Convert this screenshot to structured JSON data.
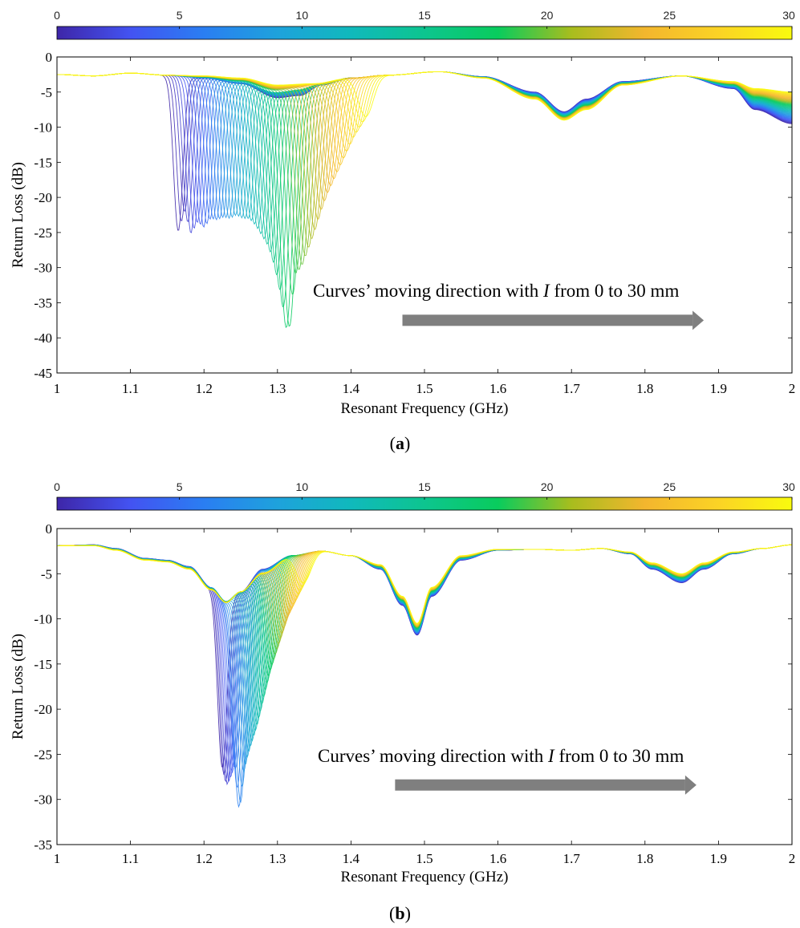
{
  "chart_data": [
    {
      "type": "line",
      "panel": "a",
      "caption_letter": "a",
      "xlabel": "Resonant Frequency (GHz)",
      "ylabel": "Return Loss (dB)",
      "xlim": [
        1,
        2
      ],
      "ylim": [
        -45,
        0
      ],
      "xticks": [
        "1",
        "1.1",
        "1.2",
        "1.3",
        "1.4",
        "1.5",
        "1.6",
        "1.7",
        "1.8",
        "1.9",
        "2"
      ],
      "yticks": [
        "0",
        "-5",
        "-10",
        "-15",
        "-20",
        "-25",
        "-30",
        "-35",
        "-40",
        "-45"
      ],
      "colorbar": {
        "min": 0,
        "max": 30,
        "ticks": [
          "0",
          "5",
          "10",
          "15",
          "20",
          "25",
          "30"
        ]
      },
      "annotation": {
        "prefix": "Curves’ moving direction with ",
        "italic": "I",
        "suffix": " from 0 to 30 mm"
      },
      "arrow": {
        "x_start": 1.47,
        "x_end": 1.88,
        "y": -37.5
      },
      "curve_family": {
        "count": 60,
        "parameter": "I (mm)",
        "dip_frequency_range": [
          1.165,
          1.42
        ],
        "dip_depths_db": [
          -24.8,
          -22.0,
          -25.2,
          -23.5,
          -24.3,
          -23.0,
          -23.2,
          -22.8,
          -23.0,
          -22.5,
          -23.0,
          -23.0,
          -24.0,
          -25.5,
          -27.0,
          -30.0,
          -34.3,
          -40.3,
          -31.0,
          -30.0,
          -27.5,
          -25.0,
          -22.0,
          -19.5,
          -17.5,
          -15.5,
          -13.5,
          -11.5,
          -10.0,
          -8.5
        ],
        "base_curve": [
          [
            1.0,
            -2.5
          ],
          [
            1.05,
            -2.7
          ],
          [
            1.1,
            -2.3
          ],
          [
            1.15,
            -2.6
          ],
          [
            1.2,
            -3.0
          ],
          [
            1.25,
            -3.8
          ],
          [
            1.3,
            -5.8
          ],
          [
            1.33,
            -5.5
          ],
          [
            1.36,
            -4.0
          ],
          [
            1.4,
            -3.0
          ],
          [
            1.45,
            -2.6
          ],
          [
            1.52,
            -2.1
          ],
          [
            1.58,
            -2.8
          ],
          [
            1.65,
            -5.0
          ],
          [
            1.69,
            -7.8
          ],
          [
            1.72,
            -6.0
          ],
          [
            1.77,
            -3.5
          ],
          [
            1.85,
            -2.7
          ],
          [
            1.92,
            -4.5
          ],
          [
            1.95,
            -7.5
          ],
          [
            2.0,
            -9.5
          ]
        ],
        "end_curve": [
          [
            1.0,
            -2.5
          ],
          [
            1.05,
            -2.7
          ],
          [
            1.1,
            -2.3
          ],
          [
            1.15,
            -2.6
          ],
          [
            1.2,
            -2.7
          ],
          [
            1.25,
            -3.0
          ],
          [
            1.3,
            -4.0
          ],
          [
            1.35,
            -3.8
          ],
          [
            1.4,
            -3.0
          ],
          [
            1.45,
            -2.6
          ],
          [
            1.52,
            -2.1
          ],
          [
            1.58,
            -3.0
          ],
          [
            1.65,
            -6.0
          ],
          [
            1.69,
            -9.0
          ],
          [
            1.72,
            -7.5
          ],
          [
            1.77,
            -4.0
          ],
          [
            1.85,
            -2.7
          ],
          [
            1.92,
            -3.5
          ],
          [
            1.95,
            -4.5
          ],
          [
            2.0,
            -5.0
          ]
        ]
      }
    },
    {
      "type": "line",
      "panel": "b",
      "caption_letter": "b",
      "xlabel": "Resonant Frequency (GHz)",
      "ylabel": "Return Loss (dB)",
      "xlim": [
        1,
        2
      ],
      "ylim": [
        -35,
        0
      ],
      "xticks": [
        "1",
        "1.1",
        "1.2",
        "1.3",
        "1.4",
        "1.5",
        "1.6",
        "1.7",
        "1.8",
        "1.9",
        "2"
      ],
      "yticks": [
        "0",
        "-5",
        "-10",
        "-15",
        "-20",
        "-25",
        "-30",
        "-35"
      ],
      "colorbar": {
        "min": 0,
        "max": 30,
        "ticks": [
          "0",
          "5",
          "10",
          "15",
          "20",
          "25",
          "30"
        ]
      },
      "annotation": {
        "prefix": "Curves’ moving direction with ",
        "italic": "I",
        "suffix": " from 0 to 30 mm"
      },
      "arrow": {
        "x_start": 1.46,
        "x_end": 1.87,
        "y": -28.4
      },
      "curve_family": {
        "count": 50,
        "parameter": "I (mm)",
        "dip_frequency_range": [
          1.225,
          1.335
        ],
        "dip_depths_db": [
          -26.5,
          -28.5,
          -27.5,
          -26.0,
          -31.5,
          -27.0,
          -25.0,
          -23.5,
          -22.0,
          -20.0,
          -18.0,
          -16.0,
          -14.5,
          -13.0,
          -11.5,
          -10.0,
          -9.0,
          -8.0,
          -7.0,
          -6.0
        ],
        "base_curve": [
          [
            1.0,
            -1.9
          ],
          [
            1.05,
            -1.8
          ],
          [
            1.08,
            -2.2
          ],
          [
            1.12,
            -3.3
          ],
          [
            1.15,
            -3.5
          ],
          [
            1.18,
            -4.2
          ],
          [
            1.21,
            -6.5
          ],
          [
            1.23,
            -8.0
          ],
          [
            1.25,
            -7.0
          ],
          [
            1.28,
            -4.5
          ],
          [
            1.32,
            -3.0
          ],
          [
            1.36,
            -2.5
          ],
          [
            1.4,
            -3.0
          ],
          [
            1.44,
            -4.5
          ],
          [
            1.47,
            -8.5
          ],
          [
            1.49,
            -11.8
          ],
          [
            1.51,
            -7.5
          ],
          [
            1.55,
            -3.5
          ],
          [
            1.6,
            -2.4
          ],
          [
            1.65,
            -2.3
          ],
          [
            1.7,
            -2.4
          ],
          [
            1.74,
            -2.2
          ],
          [
            1.78,
            -2.8
          ],
          [
            1.81,
            -4.5
          ],
          [
            1.85,
            -6.0
          ],
          [
            1.88,
            -4.5
          ],
          [
            1.92,
            -2.8
          ],
          [
            1.96,
            -2.2
          ],
          [
            2.0,
            -1.8
          ]
        ],
        "end_curve": [
          [
            1.0,
            -1.9
          ],
          [
            1.05,
            -1.9
          ],
          [
            1.08,
            -2.4
          ],
          [
            1.12,
            -3.5
          ],
          [
            1.15,
            -3.7
          ],
          [
            1.18,
            -4.5
          ],
          [
            1.21,
            -6.8
          ],
          [
            1.23,
            -8.2
          ],
          [
            1.25,
            -7.0
          ],
          [
            1.28,
            -5.0
          ],
          [
            1.32,
            -3.0
          ],
          [
            1.36,
            -2.5
          ],
          [
            1.4,
            -3.0
          ],
          [
            1.44,
            -4.0
          ],
          [
            1.47,
            -7.5
          ],
          [
            1.49,
            -10.5
          ],
          [
            1.51,
            -6.5
          ],
          [
            1.55,
            -3.0
          ],
          [
            1.6,
            -2.3
          ],
          [
            1.65,
            -2.3
          ],
          [
            1.7,
            -2.4
          ],
          [
            1.74,
            -2.2
          ],
          [
            1.78,
            -2.6
          ],
          [
            1.81,
            -3.8
          ],
          [
            1.85,
            -5.0
          ],
          [
            1.88,
            -3.8
          ],
          [
            1.92,
            -2.6
          ],
          [
            1.96,
            -2.2
          ],
          [
            2.0,
            -1.8
          ]
        ]
      }
    }
  ],
  "colormap": [
    "#3e26a8",
    "#4353f2",
    "#2a7ef2",
    "#1ea2dc",
    "#10b9bc",
    "#0dc58f",
    "#09cc5d",
    "#a8bd1e",
    "#f3b62e",
    "#fbd325",
    "#f9fb0e"
  ],
  "colors": {
    "arrow": "#7f7f7f",
    "axis": "#262626",
    "frame": "#000000"
  }
}
